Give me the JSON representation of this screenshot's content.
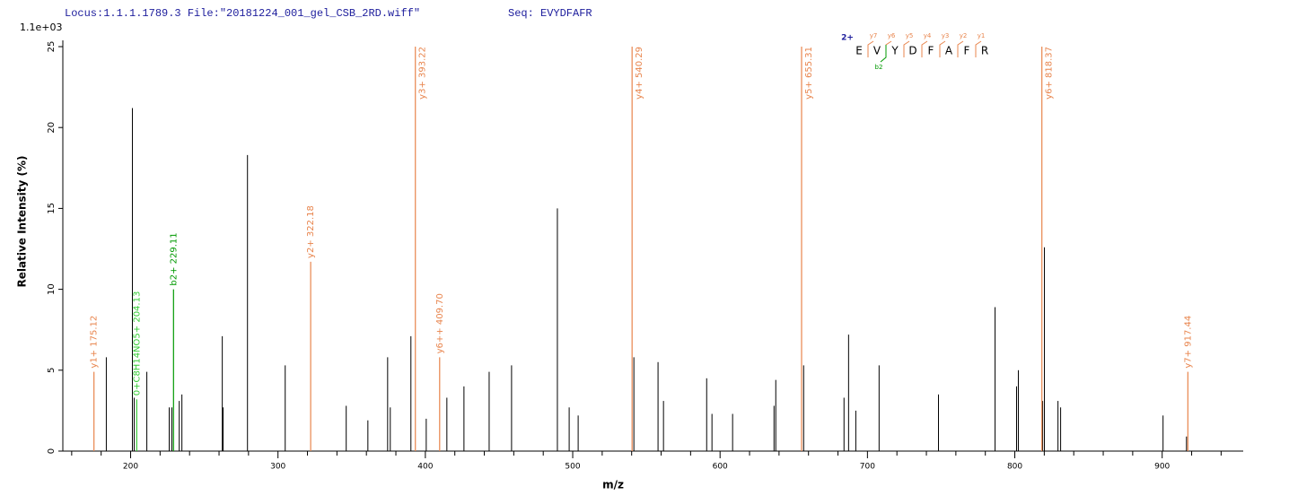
{
  "chart_data": {
    "type": "spectrum",
    "title": "Locus:1.1.1.1789.3 File:\"20181224_001_gel_CSB_2RD.wiff\"",
    "subtitle": "Seq: EVYDFAFR",
    "y_scale_label": "1.1e+03",
    "xlabel": "m/z",
    "ylabel": "Relative  Intensity (%)",
    "xlim": [
      154,
      955
    ],
    "ylim": [
      0,
      25
    ],
    "xticks": [
      200,
      300,
      400,
      500,
      600,
      700,
      800,
      900
    ],
    "xminorticks": [
      160,
      180,
      220,
      240,
      260,
      280,
      320,
      340,
      360,
      380,
      420,
      440,
      460,
      480,
      520,
      540,
      560,
      580,
      620,
      640,
      660,
      680,
      720,
      740,
      760,
      780,
      820,
      840,
      860,
      880,
      920,
      940
    ],
    "yticks": [
      0,
      5,
      10,
      15,
      20,
      25
    ],
    "peak_color": "#000000",
    "peaks": {
      "x": [
        183.5,
        201.2,
        202.4,
        211,
        226.2,
        228,
        233,
        234.8,
        262.2,
        262.8,
        279.3,
        304.9,
        346.3,
        361,
        374.4,
        376.2,
        390.2,
        400.6,
        414.6,
        426.2,
        443.3,
        458.5,
        489.6,
        497.6,
        503.7,
        541.5,
        557.9,
        561.6,
        590.9,
        594.5,
        608.5,
        636.6,
        637.8,
        656.7,
        684.1,
        687.2,
        692.1,
        707.9,
        748.2,
        786.6,
        801.2,
        802.4,
        818.9,
        820.1,
        829.3,
        831.1,
        900.6,
        916.5
      ],
      "values": [
        5.8,
        21.2,
        3.3,
        4.9,
        2.7,
        2.7,
        3.1,
        3.5,
        7.1,
        2.7,
        18.3,
        5.3,
        2.8,
        1.9,
        5.8,
        2.7,
        7.1,
        2.0,
        3.3,
        4.0,
        4.9,
        5.3,
        15.0,
        2.7,
        2.2,
        5.8,
        5.5,
        3.1,
        4.5,
        2.3,
        2.3,
        2.8,
        4.4,
        5.3,
        3.3,
        7.2,
        2.5,
        5.3,
        3.5,
        8.9,
        4.0,
        5.0,
        3.1,
        12.6,
        3.1,
        2.7,
        2.2,
        0.9
      ]
    },
    "ions": [
      {
        "label": "y1+ 175.12",
        "x": 175.12,
        "value": 4.9,
        "color": "#e8844c"
      },
      {
        "label": "0+C8H14NO5+ 204.13",
        "x": 204.13,
        "value": 3.2,
        "color": "#33cc33"
      },
      {
        "label": "b2+ 229.11",
        "x": 229.11,
        "value": 10.0,
        "color": "#009900"
      },
      {
        "label": "y2+ 322.18",
        "x": 322.18,
        "value": 11.7,
        "color": "#e8844c"
      },
      {
        "label": "y3+ 393.22",
        "x": 393.22,
        "value": 25,
        "color": "#e8844c"
      },
      {
        "label": "y6++ 409.70",
        "x": 409.7,
        "value": 5.8,
        "color": "#e8844c"
      },
      {
        "label": "y4+ 540.29",
        "x": 540.29,
        "value": 25,
        "color": "#e8844c"
      },
      {
        "label": "y5+ 655.31",
        "x": 655.31,
        "value": 25,
        "color": "#e8844c"
      },
      {
        "label": "y6+ 818.37",
        "x": 818.37,
        "value": 25,
        "color": "#e8844c"
      },
      {
        "label": "y7+ 917.44",
        "x": 917.44,
        "value": 4.9,
        "color": "#e8844c"
      }
    ],
    "sequence": {
      "charge": "2+",
      "residues": [
        "E",
        "V",
        "Y",
        "D",
        "F",
        "A",
        "F",
        "R"
      ],
      "y_ions": [
        "y7",
        "y6",
        "y5",
        "y4",
        "y3",
        "y2",
        "y1"
      ],
      "b_ions": [
        "b2"
      ]
    }
  }
}
